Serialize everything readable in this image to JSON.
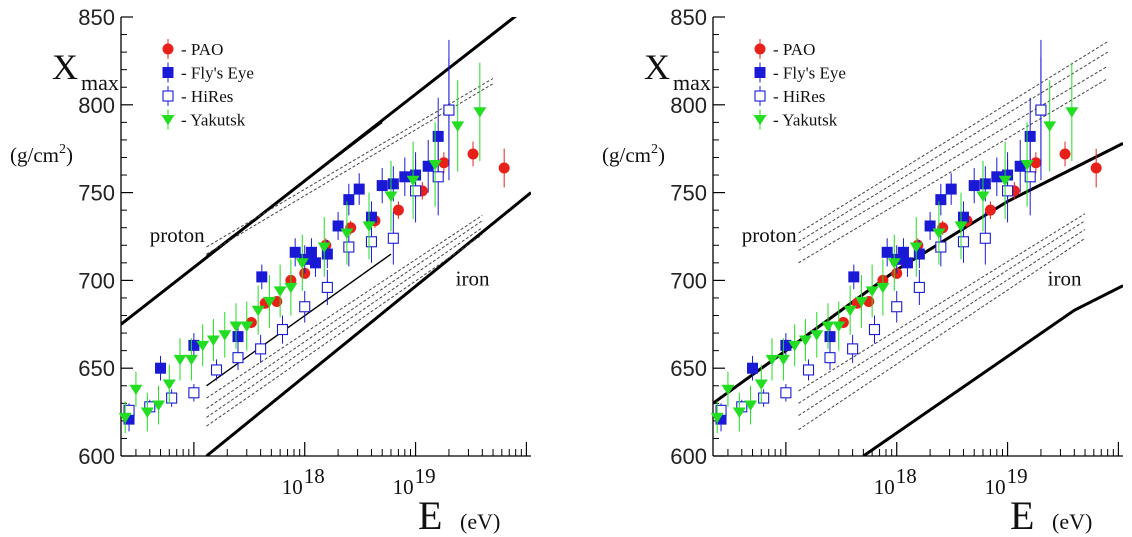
{
  "chart_data": [
    {
      "type": "scatter",
      "ylabel": {
        "main": "X",
        "sub": "max",
        "unit_pre": "(g/cm",
        "unit_sup": "2",
        "unit_post": ")"
      },
      "xlabel": {
        "main": "E",
        "unit": "(eV)"
      },
      "x_scale": "log",
      "xlim": [
        2.2e+16,
        1.1e+20
      ],
      "ylim": [
        600,
        850
      ],
      "y_ticks": [
        600,
        650,
        700,
        750,
        800,
        850
      ],
      "x_ticks": [
        {
          "value": 1e+18,
          "base": "10",
          "exp": "18"
        },
        {
          "value": 1e+19,
          "base": "10",
          "exp": "19"
        }
      ],
      "annotations": [
        {
          "text": "proton",
          "x": 4e+16,
          "y": 722
        },
        {
          "text": "iron",
          "x": 2.3e+19,
          "y": 697
        }
      ],
      "legend_position": "top-left",
      "model_lines": [
        {
          "type": "thick",
          "points": [
            [
              2.2e+16,
              675
            ],
            [
              9e+19,
              853
            ]
          ]
        },
        {
          "type": "thick",
          "points": [
            [
              1.3e+17,
              600
            ],
            [
              1.1e+20,
              750
            ]
          ]
        },
        {
          "type": "thin",
          "points": [
            [
              1.3e+17,
              714
            ],
            [
              5e+18,
              790
            ]
          ]
        },
        {
          "type": "thin",
          "points": [
            [
              1.3e+17,
              640
            ],
            [
              6e+18,
              715
            ]
          ]
        },
        {
          "type": "dashed",
          "points": [
            [
              1.3e+17,
              715
            ],
            [
              5e+19,
              812
            ]
          ]
        },
        {
          "type": "dashed",
          "points": [
            [
              1.3e+17,
              719
            ],
            [
              5e+19,
              815
            ]
          ]
        },
        {
          "type": "dashed",
          "points": [
            [
              1.3e+17,
              633
            ],
            [
              4e+19,
              737
            ]
          ]
        },
        {
          "type": "dashed",
          "points": [
            [
              1.3e+17,
              627
            ],
            [
              4e+19,
              734
            ]
          ]
        },
        {
          "type": "dashed",
          "points": [
            [
              1.3e+17,
              622
            ],
            [
              4e+19,
              730
            ]
          ]
        },
        {
          "type": "dashed",
          "points": [
            [
              1.3e+17,
              617
            ],
            [
              4e+19,
              726
            ]
          ]
        }
      ]
    },
    {
      "type": "scatter",
      "ylabel": {
        "main": "X",
        "sub": "max",
        "unit_pre": "(g/cm",
        "unit_sup": "2",
        "unit_post": ")"
      },
      "xlabel": {
        "main": "E",
        "unit": "(eV)"
      },
      "x_scale": "log",
      "xlim": [
        2.2e+16,
        1.1e+20
      ],
      "ylim": [
        600,
        850
      ],
      "y_ticks": [
        600,
        650,
        700,
        750,
        800,
        850
      ],
      "x_ticks": [
        {
          "value": 1e+18,
          "base": "10",
          "exp": "18"
        },
        {
          "value": 1e+19,
          "base": "10",
          "exp": "19"
        }
      ],
      "annotations": [
        {
          "text": "proton",
          "x": 4e+16,
          "y": 722
        },
        {
          "text": "iron",
          "x": 2.3e+19,
          "y": 697
        }
      ],
      "legend_position": "top-left",
      "model_lines": [
        {
          "type": "thick",
          "points": [
            [
              2.2e+16,
              630
            ],
            [
              1e+17,
              660
            ],
            [
              1e+18,
              706
            ],
            [
              1e+19,
              745
            ],
            [
              1.1e+20,
              778
            ]
          ]
        },
        {
          "type": "thick",
          "points": [
            [
              5e+17,
              600
            ],
            [
              4e+19,
              683
            ],
            [
              1.1e+20,
              697
            ]
          ]
        },
        {
          "type": "dashed",
          "points": [
            [
              1.3e+17,
              710
            ],
            [
              8e+19,
              815
            ]
          ]
        },
        {
          "type": "dashed",
          "points": [
            [
              1.3e+17,
              717
            ],
            [
              8e+19,
              822
            ]
          ]
        },
        {
          "type": "dashed",
          "points": [
            [
              1.3e+17,
              722
            ],
            [
              8e+19,
              830
            ]
          ]
        },
        {
          "type": "dashed",
          "points": [
            [
              1.3e+17,
              727
            ],
            [
              8e+19,
              836
            ]
          ]
        },
        {
          "type": "dashed",
          "points": [
            [
              1.3e+17,
              637
            ],
            [
              5e+19,
              738
            ]
          ]
        },
        {
          "type": "dashed",
          "points": [
            [
              1.3e+17,
              630
            ],
            [
              5e+19,
              734
            ]
          ]
        },
        {
          "type": "dashed",
          "points": [
            [
              1.3e+17,
              623
            ],
            [
              5e+19,
              729
            ]
          ]
        },
        {
          "type": "dashed",
          "points": [
            [
              1.3e+17,
              615
            ],
            [
              5e+19,
              724
            ]
          ]
        }
      ]
    }
  ],
  "series": [
    {
      "name": "- PAO",
      "marker": "circle",
      "color": "#e8201a",
      "points": [
        {
          "x": 3.3e+17,
          "y": 676,
          "err": 3
        },
        {
          "x": 4.4e+17,
          "y": 687,
          "err": 3
        },
        {
          "x": 5.6e+17,
          "y": 688,
          "err": 3
        },
        {
          "x": 7.5e+17,
          "y": 700,
          "err": 3
        },
        {
          "x": 1e+18,
          "y": 704,
          "err": 3
        },
        {
          "x": 1.55e+18,
          "y": 720,
          "err": 4
        },
        {
          "x": 2.6e+18,
          "y": 730,
          "err": 4
        },
        {
          "x": 4.3e+18,
          "y": 734,
          "err": 4
        },
        {
          "x": 7e+18,
          "y": 740,
          "err": 5
        },
        {
          "x": 1.15e+19,
          "y": 751,
          "err": 5
        },
        {
          "x": 1.8e+19,
          "y": 767,
          "err": 6
        },
        {
          "x": 3.3e+19,
          "y": 772,
          "err": 7
        },
        {
          "x": 6.3e+19,
          "y": 764,
          "err": 11
        }
      ]
    },
    {
      "name": "- Fly's Eye",
      "marker": "square",
      "color": "#1a1ad6",
      "points": [
        {
          "x": 2.6e+16,
          "y": 621,
          "err": 7
        },
        {
          "x": 5e+16,
          "y": 650,
          "err": 7
        },
        {
          "x": 1e+17,
          "y": 663,
          "err": 7
        },
        {
          "x": 2.5e+17,
          "y": 668,
          "err": 7
        },
        {
          "x": 4.1e+17,
          "y": 702,
          "err": 7
        },
        {
          "x": 8.2e+17,
          "y": 716,
          "err": 8
        },
        {
          "x": 1e+18,
          "y": 712,
          "err": 8
        },
        {
          "x": 1.15e+18,
          "y": 716,
          "err": 8
        },
        {
          "x": 1.25e+18,
          "y": 710,
          "err": 8
        },
        {
          "x": 1.6e+18,
          "y": 715,
          "err": 8
        },
        {
          "x": 2e+18,
          "y": 731,
          "err": 8
        },
        {
          "x": 2.5e+18,
          "y": 746,
          "err": 9
        },
        {
          "x": 3.1e+18,
          "y": 752,
          "err": 9
        },
        {
          "x": 4e+18,
          "y": 736,
          "err": 9
        },
        {
          "x": 5e+18,
          "y": 754,
          "err": 10
        },
        {
          "x": 6.3e+18,
          "y": 755,
          "err": 10
        },
        {
          "x": 8e+18,
          "y": 759,
          "err": 11
        },
        {
          "x": 1e+19,
          "y": 760,
          "err": 13
        },
        {
          "x": 1.3e+19,
          "y": 765,
          "err": 15
        },
        {
          "x": 1.6e+19,
          "y": 782,
          "err": 22
        },
        {
          "x": 2e+19,
          "y": 797,
          "err": 40
        }
      ]
    },
    {
      "name": "- HiRes",
      "marker": "open-square",
      "color": "#1a1ad6",
      "points": [
        {
          "x": 2.6e+16,
          "y": 626,
          "err": 4
        },
        {
          "x": 4e+16,
          "y": 628,
          "err": 4
        },
        {
          "x": 6.3e+16,
          "y": 633,
          "err": 5
        },
        {
          "x": 1e+17,
          "y": 636,
          "err": 5
        },
        {
          "x": 1.6e+17,
          "y": 649,
          "err": 6
        },
        {
          "x": 2.5e+17,
          "y": 656,
          "err": 7
        },
        {
          "x": 4e+17,
          "y": 661,
          "err": 8
        },
        {
          "x": 6.3e+17,
          "y": 672,
          "err": 8
        },
        {
          "x": 1e+18,
          "y": 685,
          "err": 9
        },
        {
          "x": 1.6e+18,
          "y": 696,
          "err": 10
        },
        {
          "x": 2.5e+18,
          "y": 719,
          "err": 11
        },
        {
          "x": 4e+18,
          "y": 722,
          "err": 12
        },
        {
          "x": 6.3e+18,
          "y": 724,
          "err": 15
        },
        {
          "x": 1e+19,
          "y": 751,
          "err": 18
        },
        {
          "x": 1.6e+19,
          "y": 759,
          "err": 22
        },
        {
          "x": 2e+19,
          "y": 797,
          "err": 30
        }
      ]
    },
    {
      "name": "- Yakutsk",
      "marker": "triangle-down",
      "color": "#22dd22",
      "points": [
        {
          "x": 2.4e+16,
          "y": 622,
          "err": 9
        },
        {
          "x": 3e+16,
          "y": 638,
          "err": 10
        },
        {
          "x": 3.8e+16,
          "y": 625,
          "err": 11
        },
        {
          "x": 4.8e+16,
          "y": 629,
          "err": 11
        },
        {
          "x": 6e+16,
          "y": 641,
          "err": 11
        },
        {
          "x": 7.5e+16,
          "y": 655,
          "err": 12
        },
        {
          "x": 9.5e+16,
          "y": 655,
          "err": 12
        },
        {
          "x": 1.2e+17,
          "y": 663,
          "err": 12
        },
        {
          "x": 1.5e+17,
          "y": 666,
          "err": 12
        },
        {
          "x": 1.9e+17,
          "y": 669,
          "err": 13
        },
        {
          "x": 2.4e+17,
          "y": 674,
          "err": 13
        },
        {
          "x": 3e+17,
          "y": 674,
          "err": 14
        },
        {
          "x": 3.8e+17,
          "y": 683,
          "err": 14
        },
        {
          "x": 4.8e+17,
          "y": 688,
          "err": 15
        },
        {
          "x": 6e+17,
          "y": 694,
          "err": 15
        },
        {
          "x": 7.5e+17,
          "y": 696,
          "err": 16
        },
        {
          "x": 9.5e+17,
          "y": 710,
          "err": 16
        },
        {
          "x": 1.5e+18,
          "y": 719,
          "err": 17
        },
        {
          "x": 2.4e+18,
          "y": 727,
          "err": 18
        },
        {
          "x": 3.8e+18,
          "y": 731,
          "err": 19
        },
        {
          "x": 6e+18,
          "y": 748,
          "err": 20
        },
        {
          "x": 9.5e+18,
          "y": 757,
          "err": 22
        },
        {
          "x": 1.5e+19,
          "y": 766,
          "err": 24
        },
        {
          "x": 2.4e+19,
          "y": 788,
          "err": 26
        },
        {
          "x": 3.8e+19,
          "y": 796,
          "err": 28
        }
      ]
    }
  ]
}
